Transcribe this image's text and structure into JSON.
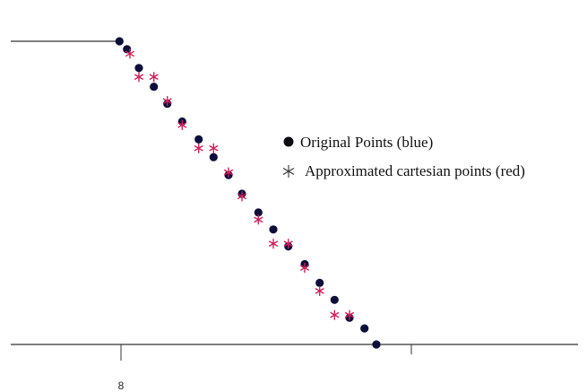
{
  "chart_data": {
    "type": "scatter",
    "title": "",
    "xlabel": "",
    "ylabel": "",
    "grid": false,
    "legend_position": "right",
    "x_tick_labels": [
      "8",
      ""
    ],
    "xlim": [
      0,
      39.3
    ],
    "ylim": [
      0,
      34
    ],
    "baseline_left": {
      "x": [
        0,
        8
      ],
      "y": [
        34,
        34
      ]
    },
    "series": [
      {
        "name": "Original Points (blue)",
        "marker": "circle",
        "color": "#0d0f3a",
        "points": [
          {
            "x": 8.0,
            "y": 34.0
          },
          {
            "x": 8.5,
            "y": 33.1
          },
          {
            "x": 9.3,
            "y": 31.0
          },
          {
            "x": 10.3,
            "y": 28.9
          },
          {
            "x": 11.2,
            "y": 27.0
          },
          {
            "x": 12.2,
            "y": 25.0
          },
          {
            "x": 13.3,
            "y": 23.0
          },
          {
            "x": 14.3,
            "y": 21.0
          },
          {
            "x": 15.3,
            "y": 19.0
          },
          {
            "x": 16.2,
            "y": 16.9
          },
          {
            "x": 17.3,
            "y": 14.8
          },
          {
            "x": 18.3,
            "y": 12.9
          },
          {
            "x": 19.3,
            "y": 11.0
          },
          {
            "x": 20.4,
            "y": 9.0
          },
          {
            "x": 21.4,
            "y": 6.9
          },
          {
            "x": 22.4,
            "y": 5.0
          },
          {
            "x": 23.4,
            "y": 3.0
          },
          {
            "x": 24.4,
            "y": 1.8
          },
          {
            "x": 25.2,
            "y": 0.0
          }
        ]
      },
      {
        "name": "Approximated cartesian points (red)",
        "marker": "asterisk",
        "color": "#d0205a",
        "points": [
          {
            "x": 8.7,
            "y": 32.6
          },
          {
            "x": 9.3,
            "y": 30.0
          },
          {
            "x": 10.3,
            "y": 30.0
          },
          {
            "x": 11.2,
            "y": 27.3
          },
          {
            "x": 12.2,
            "y": 24.6
          },
          {
            "x": 13.3,
            "y": 22.0
          },
          {
            "x": 14.3,
            "y": 22.0
          },
          {
            "x": 15.3,
            "y": 19.3
          },
          {
            "x": 16.2,
            "y": 16.6
          },
          {
            "x": 17.3,
            "y": 14.0
          },
          {
            "x": 18.3,
            "y": 11.3
          },
          {
            "x": 19.3,
            "y": 11.3
          },
          {
            "x": 20.4,
            "y": 8.6
          },
          {
            "x": 21.4,
            "y": 6.0
          },
          {
            "x": 22.4,
            "y": 3.3
          },
          {
            "x": 23.4,
            "y": 3.3
          }
        ]
      }
    ]
  }
}
